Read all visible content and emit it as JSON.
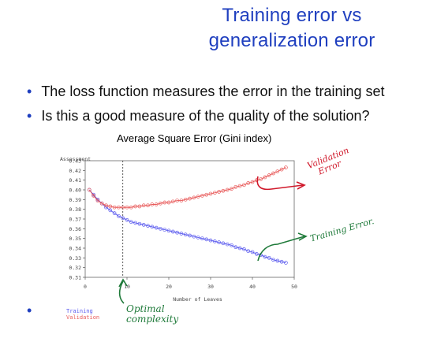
{
  "slide": {
    "title_line1": "Training error vs",
    "title_line2": "generalization error",
    "bullets": [
      "The loss function measures the error in the training set",
      "Is this a good measure of the quality of the solution?"
    ],
    "bullet_char": "•",
    "extra_bullet": "•",
    "colors": {
      "title": "#1f3fbf",
      "validation": "#e85a5a",
      "training": "#5a5aee",
      "annotation_red": "#d0182a",
      "annotation_green": "#1f7a3a"
    }
  },
  "annotations": {
    "validation_note_line1": "Validation",
    "validation_note_line2": "Error",
    "training_note": "Training Error.",
    "optimal_line1": "Optimal",
    "optimal_line2": "complexity"
  },
  "legend": {
    "training": "Training",
    "validation": "Validation"
  },
  "chart_data": {
    "type": "line",
    "title": "Average Square Error (Gini index)",
    "xlabel": "Number of Leaves",
    "ylabel": "Assessment",
    "xlim": [
      0,
      50
    ],
    "ylim": [
      0.31,
      0.43
    ],
    "xticks": [
      "0",
      "10",
      "20",
      "30",
      "40",
      "50"
    ],
    "yticks": [
      "0.31",
      "0.32",
      "0.33",
      "0.34",
      "0.35",
      "0.36",
      "0.37",
      "0.38",
      "0.39",
      "0.40",
      "0.41",
      "0.42",
      "0.43"
    ],
    "reference_line_x": 9,
    "series": [
      {
        "name": "Training",
        "color": "#5a5aee",
        "x": [
          1,
          2,
          3,
          4,
          5,
          6,
          7,
          8,
          9,
          10,
          11,
          12,
          13,
          14,
          15,
          16,
          17,
          18,
          19,
          20,
          21,
          22,
          23,
          24,
          25,
          26,
          27,
          28,
          29,
          30,
          31,
          32,
          33,
          34,
          35,
          36,
          37,
          38,
          39,
          40,
          41,
          42,
          43,
          44,
          45,
          46,
          47,
          48
        ],
        "y": [
          0.4,
          0.395,
          0.39,
          0.386,
          0.382,
          0.379,
          0.376,
          0.373,
          0.371,
          0.369,
          0.367,
          0.366,
          0.365,
          0.364,
          0.363,
          0.362,
          0.361,
          0.36,
          0.359,
          0.358,
          0.357,
          0.356,
          0.355,
          0.354,
          0.353,
          0.352,
          0.351,
          0.35,
          0.349,
          0.348,
          0.347,
          0.346,
          0.345,
          0.344,
          0.343,
          0.341,
          0.34,
          0.339,
          0.337,
          0.336,
          0.334,
          0.333,
          0.331,
          0.33,
          0.328,
          0.327,
          0.326,
          0.325
        ]
      },
      {
        "name": "Validation",
        "color": "#e85a5a",
        "x": [
          1,
          2,
          3,
          4,
          5,
          6,
          7,
          8,
          9,
          10,
          11,
          12,
          13,
          14,
          15,
          16,
          17,
          18,
          19,
          20,
          21,
          22,
          23,
          24,
          25,
          26,
          27,
          28,
          29,
          30,
          31,
          32,
          33,
          34,
          35,
          36,
          37,
          38,
          39,
          40,
          41,
          42,
          43,
          44,
          45,
          46,
          47,
          48
        ],
        "y": [
          0.4,
          0.394,
          0.389,
          0.386,
          0.384,
          0.383,
          0.382,
          0.382,
          0.382,
          0.382,
          0.382,
          0.383,
          0.383,
          0.384,
          0.384,
          0.385,
          0.385,
          0.386,
          0.387,
          0.387,
          0.388,
          0.389,
          0.389,
          0.39,
          0.391,
          0.392,
          0.393,
          0.394,
          0.395,
          0.396,
          0.397,
          0.398,
          0.399,
          0.4,
          0.401,
          0.403,
          0.404,
          0.405,
          0.407,
          0.408,
          0.41,
          0.411,
          0.413,
          0.415,
          0.417,
          0.419,
          0.421,
          0.423
        ]
      }
    ]
  }
}
